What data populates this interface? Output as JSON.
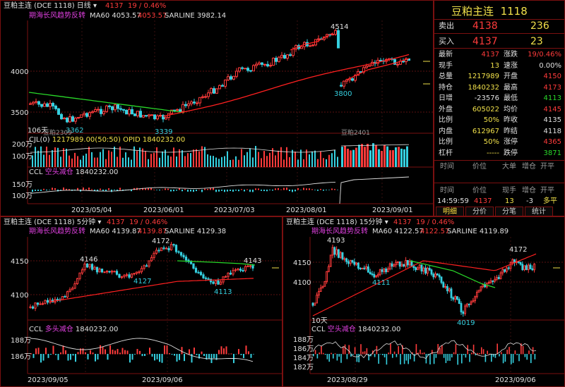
{
  "main_chart": {
    "symbol": "豆粕主连",
    "period": "日线",
    "price": "4137",
    "change": "19 / 0.46%",
    "ind_name": "期海长风趋势反转",
    "ma60_label": "MA60 4053.57",
    "ma60_value": "4053.57",
    "sar_label": "SARLINE 3982.14",
    "y_ticks": [
      "4000",
      "3500"
    ],
    "annotations": [
      "4514",
      "3800",
      "3362",
      "3339"
    ],
    "bar_count_label": "106天",
    "contract_marks": [
      "豆粕2309",
      "豆粕2401"
    ],
    "sub1_label": "CJL(0)",
    "sub1_values": "1217989.00(50:50)  OPID 1840232.00",
    "sub1_ticks": [
      "200万",
      "100万"
    ],
    "sub2_label": "CCL",
    "sub2_tag": "空头减仓",
    "sub2_value": "1840232.00",
    "sub2_ticks": [
      "150万",
      "100万"
    ],
    "x_labels": [
      "2023/05/04",
      "2023/06/01",
      "2023/07/03",
      "2023/08/01",
      "2023/09/01"
    ]
  },
  "quote": {
    "title": "豆粕主连",
    "code": "1118",
    "sell_label": "卖出",
    "sell_price": "4138",
    "sell_vol": "236",
    "buy_label": "买入",
    "buy_price": "4137",
    "buy_vol": "23",
    "rows": [
      {
        "l1": "最新",
        "v1": "4137",
        "c1": "r",
        "l2": "涨跌",
        "v2": "19/0.46%",
        "c2": "r"
      },
      {
        "l1": "现手",
        "v1": "13",
        "c1": "y",
        "l2": "速涨",
        "v2": "0.00%",
        "c2": "w"
      },
      {
        "l1": "总量",
        "v1": "1217989",
        "c1": "y",
        "l2": "开盘",
        "v2": "4150",
        "c2": "r"
      },
      {
        "l1": "持仓",
        "v1": "1840232",
        "c1": "y",
        "l2": "最高",
        "v2": "4173",
        "c2": "r"
      },
      {
        "l1": "日增",
        "v1": "-23576",
        "c1": "w",
        "l2": "最低",
        "v2": "4113",
        "c2": "g"
      },
      {
        "l1": "外盘",
        "v1": "605022",
        "c1": "y",
        "l2": "均价",
        "v2": "4145",
        "c2": "r"
      },
      {
        "l1": "比例",
        "v1": "50%",
        "c1": "y",
        "l2": "昨收",
        "v2": "4135",
        "c2": "w"
      },
      {
        "l1": "内盘",
        "v1": "612967",
        "c1": "y",
        "l2": "昨结",
        "v2": "4118",
        "c2": "w"
      },
      {
        "l1": "比例",
        "v1": "50%",
        "c1": "y",
        "l2": "涨停",
        "v2": "4365",
        "c2": "r"
      },
      {
        "l1": "杠杆",
        "v1": "-----",
        "c1": "y",
        "l2": "跌停",
        "v2": "3871",
        "c2": "g"
      }
    ],
    "tick_headers": [
      "时间",
      "价位",
      "大单",
      "增仓",
      "开平"
    ],
    "tick_headers2": [
      "时间",
      "价位",
      "现手",
      "增仓",
      "开平"
    ],
    "tick_row": {
      "time": "14:59:59",
      "price": "4137",
      "vol": "13",
      "add": "-3",
      "type": "多平"
    },
    "tabs": [
      "明细",
      "分价",
      "分笔",
      "统计"
    ]
  },
  "chart5": {
    "symbol": "豆粕主连",
    "period": "5分钟",
    "price": "4137",
    "change": "19 / 0.46%",
    "ind_name": "期海长风趋势反转",
    "ma60_label": "MA60 4139.87",
    "ma60_value": "4139.87",
    "sar_label": "SARLINE 4129.38",
    "y_ticks": [
      "4150",
      "4100"
    ],
    "annotations": [
      "4172",
      "4146",
      "4127",
      "4113",
      "4143"
    ],
    "sub_label": "CCL",
    "sub_tag": "多头减仓",
    "sub_value": "1840232.00",
    "sub_ticks": [
      "188万",
      "186万"
    ],
    "x_labels": [
      "2023/09/05",
      "2023/09/06"
    ]
  },
  "chart15": {
    "symbol": "豆粕主连",
    "period": "15分钟",
    "price": "4137",
    "change": "19 / 0.46%",
    "ind_name": "期海长风趋势反转",
    "ma60_label": "MA60 4122.57",
    "ma60_value": "4122.57",
    "sar_label": "SARLINE 4119.89",
    "y_ticks": [
      "4150",
      "4100"
    ],
    "annotations": [
      "4193",
      "4111",
      "4172",
      "4019"
    ],
    "bar_count_label": "10天",
    "sub_label": "CCL",
    "sub_tag": "空头减仓",
    "sub_value": "1840232.00",
    "sub_ticks": [
      "188万",
      "186万",
      "184万",
      "182万"
    ],
    "x_labels": [
      "2023/08/29",
      "2023/09/06"
    ]
  }
}
